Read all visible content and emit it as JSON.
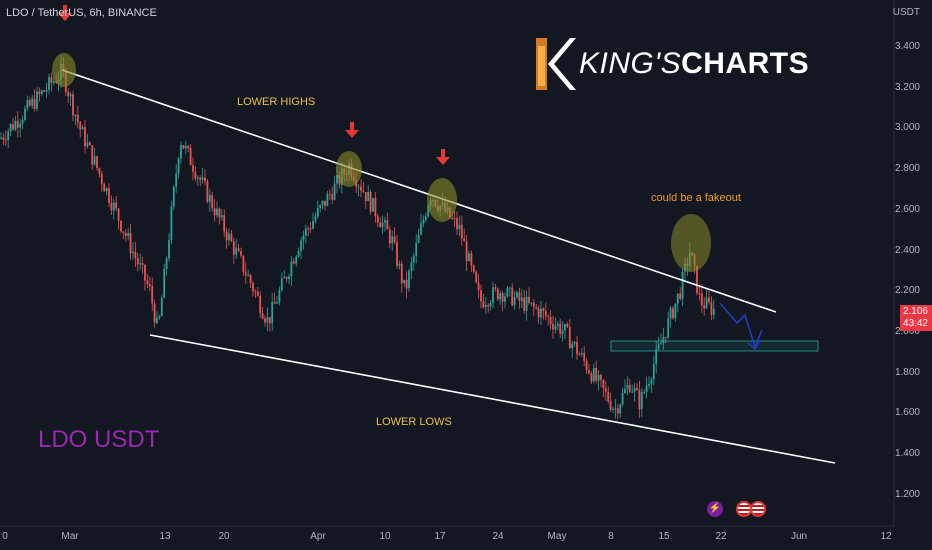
{
  "symbol": "LDO / TetherUS, 6h, BINANCE",
  "price_axis_header": "USDT",
  "logo": {
    "prefix": "KING'S",
    "suffix": "CHARTS"
  },
  "annotations": {
    "lower_highs": "LOWER HIGHS",
    "lower_lows": "LOWER LOWS",
    "fakeout": "could be a fakeout",
    "pair": "LDO USDT"
  },
  "current_price": {
    "value": "2.106",
    "countdown": "43:42",
    "color": "#f23645"
  },
  "colors": {
    "up": "#26a69a",
    "down": "#ef5350",
    "background": "#131722",
    "trendline": "#ffffff",
    "arrow": "#e53935",
    "highlight": "#8a8a2a",
    "projection": "#1e3fbf"
  },
  "icons": [
    "lightning-icon",
    "us-flag-icon",
    "us-flag-icon"
  ],
  "chart_data": {
    "type": "candlestick",
    "title": "LDO / TetherUS, 6h, BINANCE",
    "y_ticks": [
      "3.400",
      "3.200",
      "3.000",
      "2.800",
      "2.600",
      "2.400",
      "2.200",
      "2.000",
      "1.800",
      "1.600",
      "1.400",
      "1.200"
    ],
    "x_ticks": [
      "0",
      "Mar",
      "13",
      "20",
      "Apr",
      "10",
      "17",
      "24",
      "May",
      "8",
      "15",
      "22",
      "Jun",
      "12"
    ],
    "ylim": [
      1.1,
      3.55
    ],
    "grid": false,
    "price_path": [
      [
        "0",
        2.95
      ],
      [
        "Mar",
        3.28
      ],
      [
        "Mar+",
        3.0
      ],
      [
        "13-",
        2.2
      ],
      [
        "13",
        2.0
      ],
      [
        "13+",
        2.95
      ],
      [
        "20",
        2.25
      ],
      [
        "20+",
        2.05
      ],
      [
        "Apr",
        2.45
      ],
      [
        "Apr+",
        2.82
      ],
      [
        "10",
        2.45
      ],
      [
        "10+",
        2.2
      ],
      [
        "17",
        2.68
      ],
      [
        "17+",
        2.5
      ],
      [
        "24",
        2.15
      ],
      [
        "24+",
        2.2
      ],
      [
        "May",
        2.1
      ],
      [
        "May+",
        2.0
      ],
      [
        "8",
        1.62
      ],
      [
        "8+",
        1.75
      ],
      [
        "15-",
        1.65
      ],
      [
        "15",
        2.0
      ],
      [
        "15+",
        2.2
      ],
      [
        "22-",
        2.4
      ],
      [
        "22",
        2.15
      ],
      [
        "22+",
        2.106
      ]
    ],
    "trendlines": {
      "upper": [
        [
          "Mar",
          3.3
        ],
        [
          "22+",
          2.1
        ]
      ],
      "lower": [
        [
          "13",
          2.0
        ],
        [
          "Jun+",
          1.37
        ]
      ]
    },
    "support_zone": [
      1.95,
      2.0
    ],
    "current_value": 2.106
  }
}
